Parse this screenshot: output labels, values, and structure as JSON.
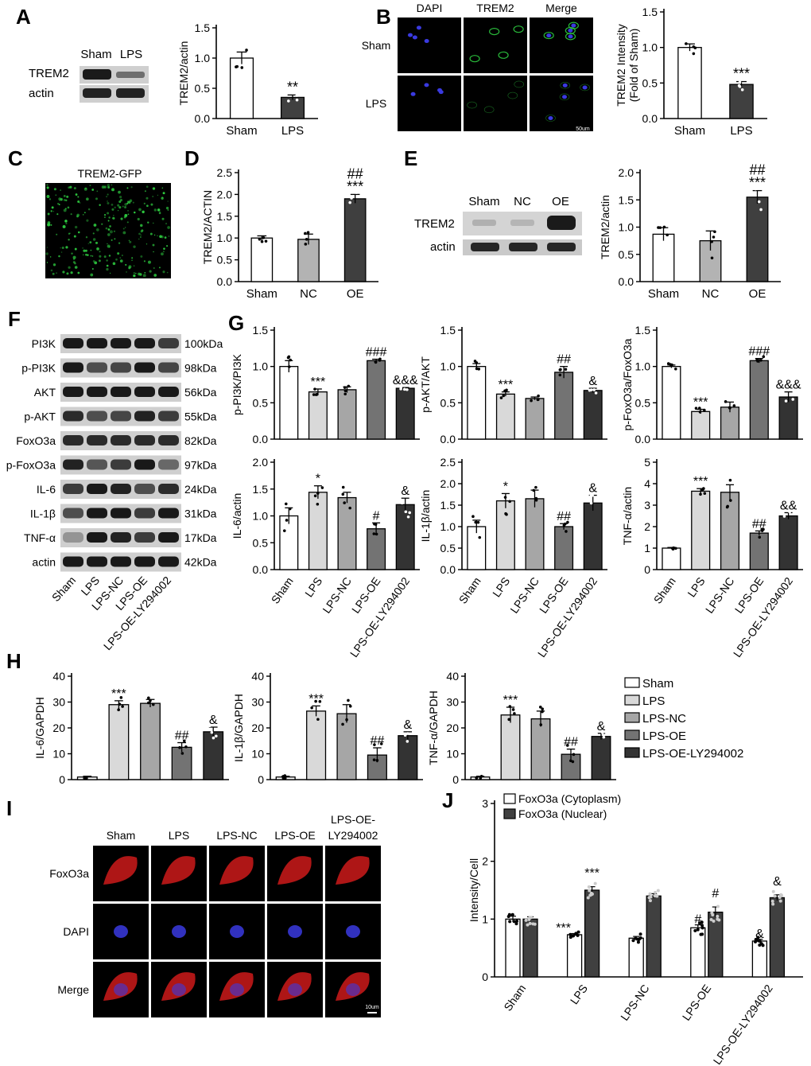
{
  "colors": {
    "sham": "#ffffff",
    "lps": "#d9d9d9",
    "lps_nc": "#a6a6a6",
    "lps_oe": "#737373",
    "lps_oe_ly": "#333333",
    "nc": "#b3b3b3",
    "oe": "#3f3f3f",
    "lps_ab": "#404040",
    "cyto": "#ffffff",
    "nuclear": "#404040",
    "red_cell": "#cc1a1a",
    "blue_nucleus": "#3a3ae0",
    "green_signal": "#2ecc40"
  },
  "panel_letters": [
    "A",
    "B",
    "C",
    "D",
    "E",
    "F",
    "G",
    "H",
    "I",
    "J"
  ],
  "blots": {
    "A": {
      "lanes": [
        "Sham",
        "LPS"
      ],
      "rows": [
        "TREM2",
        "actin"
      ]
    },
    "E": {
      "lanes": [
        "Sham",
        "NC",
        "OE"
      ],
      "rows": [
        "TREM2",
        "actin"
      ]
    },
    "F": {
      "rows": [
        "PI3K",
        "p-PI3K",
        "AKT",
        "p-AKT",
        "FoxO3a",
        "p-FoxO3a",
        "IL-6",
        "IL-1β",
        "TNF-α",
        "actin"
      ],
      "sizes": [
        "100kDa",
        "98kDa",
        "56kDa",
        "55kDa",
        "82kDa",
        "97kDa",
        "24kDa",
        "31kDa",
        "17kDa",
        "42kDa"
      ],
      "lanes": [
        "Sham",
        "LPS",
        "LPS-NC",
        "LPS-OE",
        "LPS-OE-LY294002"
      ]
    }
  },
  "images": {
    "B": {
      "cols": [
        "DAPI",
        "TREM2",
        "Merge"
      ],
      "rows": [
        "Sham",
        "LPS"
      ],
      "scale": "50um"
    },
    "C": {
      "title": "TREM2-GFP"
    },
    "I": {
      "cols": [
        "Sham",
        "LPS",
        "LPS-NC",
        "LPS-OE",
        "LPS-OE-LY294002"
      ],
      "rows": [
        "FoxO3a",
        "DAPI",
        "Merge"
      ],
      "scale": "10um"
    }
  },
  "legend_H": [
    "Sham",
    "LPS",
    "LPS-NC",
    "LPS-OE",
    "LPS-OE-LY294002"
  ],
  "chart_data": [
    {
      "id": "A",
      "type": "bar",
      "categories": [
        "Sham",
        "LPS"
      ],
      "values": [
        1.0,
        0.35
      ],
      "errors": [
        0.1,
        0.04
      ],
      "ylabel": "TREM2/actin",
      "ylim": [
        0,
        1.5
      ],
      "ticks": [
        0.0,
        0.5,
        1.0,
        1.5
      ],
      "tick_labels": [
        "0.0",
        "0.5",
        "1.0",
        "1.5"
      ],
      "marks": [
        "",
        "**"
      ]
    },
    {
      "id": "B",
      "type": "bar",
      "categories": [
        "Sham",
        "LPS"
      ],
      "values": [
        1.0,
        0.48
      ],
      "errors": [
        0.05,
        0.04
      ],
      "ylabel": "TREM2 Intensity (Fold of Sham)",
      "ylim": [
        0,
        1.5
      ],
      "ticks": [
        0.0,
        0.5,
        1.0,
        1.5
      ],
      "tick_labels": [
        "0.0",
        "0.5",
        "1.0",
        "1.5"
      ],
      "marks": [
        "",
        "***"
      ]
    },
    {
      "id": "D",
      "type": "bar",
      "categories": [
        "Sham",
        "NC",
        "OE"
      ],
      "values": [
        1.0,
        0.97,
        1.9
      ],
      "errors": [
        0.05,
        0.12,
        0.1
      ],
      "ylabel": "TREM2/ACTIN",
      "ylim": [
        0,
        2.5
      ],
      "ticks": [
        0.0,
        0.5,
        1.0,
        1.5,
        2.0,
        2.5
      ],
      "tick_labels": [
        "0.0",
        "0.5",
        "1.0",
        "1.5",
        "2.0",
        "2.5"
      ],
      "marks": [
        "",
        "",
        "##\n***"
      ]
    },
    {
      "id": "E",
      "type": "bar",
      "categories": [
        "Sham",
        "NC",
        "OE"
      ],
      "values": [
        0.87,
        0.75,
        1.55
      ],
      "errors": [
        0.12,
        0.18,
        0.12
      ],
      "ylabel": "TREM2/actin",
      "ylim": [
        0,
        2.0
      ],
      "ticks": [
        0.0,
        0.5,
        1.0,
        1.5,
        2.0
      ],
      "tick_labels": [
        "0.0",
        "0.5",
        "1.0",
        "1.5",
        "2.0"
      ],
      "marks": [
        "",
        "",
        "##\n***"
      ]
    },
    {
      "id": "G1",
      "type": "bar",
      "categories": [
        "Sham",
        "LPS",
        "LPS-NC",
        "LPS-OE",
        "LPS-OE-LY294002"
      ],
      "values": [
        1.0,
        0.65,
        0.68,
        1.08,
        0.7
      ],
      "errors": [
        0.08,
        0.04,
        0.04,
        0.02,
        0.01
      ],
      "ylabel": "p-PI3K/PI3K",
      "ylim": [
        0,
        1.5
      ],
      "ticks": [
        0.0,
        0.5,
        1.0,
        1.5
      ],
      "tick_labels": [
        "0.0",
        "0.5",
        "1.0",
        "1.5"
      ],
      "marks": [
        "",
        "***",
        "",
        "###",
        "&&&"
      ]
    },
    {
      "id": "G2",
      "type": "bar",
      "categories": [
        "Sham",
        "LPS",
        "LPS-NC",
        "LPS-OE",
        "LPS-OE-LY294002"
      ],
      "values": [
        1.0,
        0.62,
        0.56,
        0.92,
        0.67
      ],
      "errors": [
        0.04,
        0.03,
        0.02,
        0.08,
        0.03
      ],
      "ylabel": "p-AKT/AKT",
      "ylim": [
        0,
        1.5
      ],
      "ticks": [
        0.0,
        0.5,
        1.0,
        1.5
      ],
      "tick_labels": [
        "0.0",
        "0.5",
        "1.0",
        "1.5"
      ],
      "marks": [
        "",
        "***",
        "",
        "##",
        "&"
      ]
    },
    {
      "id": "G3",
      "type": "bar",
      "categories": [
        "Sham",
        "LPS",
        "LPS-NC",
        "LPS-OE",
        "LPS-OE-LY294002"
      ],
      "values": [
        1.0,
        0.38,
        0.44,
        1.08,
        0.58
      ],
      "errors": [
        0.02,
        0.03,
        0.07,
        0.03,
        0.07
      ],
      "ylabel": "p-FoxO3a/FoxO3a",
      "ylim": [
        0,
        1.5
      ],
      "ticks": [
        0.0,
        0.5,
        1.0,
        1.5
      ],
      "tick_labels": [
        "0.0",
        "0.5",
        "1.0",
        "1.5"
      ],
      "marks": [
        "",
        "***",
        "",
        "###",
        "&&&"
      ]
    },
    {
      "id": "G4",
      "type": "bar",
      "categories": [
        "Sham",
        "LPS",
        "LPS-NC",
        "LPS-OE",
        "LPS-OE-LY294002"
      ],
      "values": [
        1.0,
        1.44,
        1.34,
        0.76,
        1.21
      ],
      "errors": [
        0.15,
        0.12,
        0.1,
        0.11,
        0.12
      ],
      "ylabel": "IL-6/actin",
      "ylim": [
        0,
        2.0
      ],
      "ticks": [
        0.0,
        0.5,
        1.0,
        1.5,
        2.0
      ],
      "tick_labels": [
        "0.0",
        "0.5",
        "1.0",
        "1.5",
        "2.0"
      ],
      "marks": [
        "",
        "*",
        "",
        "#",
        "&"
      ],
      "xtick_labels": [
        "Sham",
        "LPS",
        "LPS-NC",
        "LPS-OE",
        "LPS-OE-LY294002"
      ]
    },
    {
      "id": "G5",
      "type": "bar",
      "categories": [
        "Sham",
        "LPS",
        "LPS-NC",
        "LPS-OE",
        "LPS-OE-LY294002"
      ],
      "values": [
        1.0,
        1.6,
        1.65,
        1.0,
        1.55
      ],
      "errors": [
        0.15,
        0.17,
        0.2,
        0.07,
        0.18
      ],
      "ylabel": "IL-1β/actin",
      "ylim": [
        0,
        2.5
      ],
      "ticks": [
        0.0,
        0.5,
        1.0,
        1.5,
        2.0,
        2.5
      ],
      "tick_labels": [
        "0.0",
        "0.5",
        "1.0",
        "1.5",
        "2.0",
        "2.5"
      ],
      "marks": [
        "",
        "*",
        "",
        "##",
        "&"
      ],
      "xtick_labels": [
        "Sham",
        "LPS",
        "LPS-NC",
        "LPS-OE",
        "LPS-OE-LY294002"
      ]
    },
    {
      "id": "G6",
      "type": "bar",
      "categories": [
        "Sham",
        "LPS",
        "LPS-NC",
        "LPS-OE",
        "LPS-OE-LY294002"
      ],
      "values": [
        1.0,
        3.65,
        3.6,
        1.7,
        2.5
      ],
      "errors": [
        0.03,
        0.12,
        0.35,
        0.1,
        0.15
      ],
      "ylabel": "TNF-α/actin",
      "ylim": [
        0,
        5
      ],
      "ticks": [
        0,
        1,
        2,
        3,
        4,
        5
      ],
      "tick_labels": [
        "0",
        "1",
        "2",
        "3",
        "4",
        "5"
      ],
      "marks": [
        "",
        "***",
        "",
        "##",
        "&&"
      ],
      "xtick_labels": [
        "Sham",
        "LPS",
        "LPS-NC",
        "LPS-OE",
        "LPS-OE-LY294002"
      ]
    },
    {
      "id": "H1",
      "type": "bar",
      "categories": [
        "Sham",
        "LPS",
        "LPS-NC",
        "LPS-OE",
        "LPS-OE-LY294002"
      ],
      "values": [
        1.0,
        29,
        29.5,
        12.5,
        18.5
      ],
      "errors": [
        0.3,
        1.5,
        1.5,
        1.8,
        1.8
      ],
      "ylabel": "IL-6/GAPDH",
      "ylim": [
        0,
        40
      ],
      "ticks": [
        0,
        10,
        20,
        30,
        40
      ],
      "tick_labels": [
        "0",
        "10",
        "20",
        "30",
        "40"
      ],
      "marks": [
        "",
        "***",
        "",
        "##",
        "&"
      ]
    },
    {
      "id": "H2",
      "type": "bar",
      "categories": [
        "Sham",
        "LPS",
        "LPS-NC",
        "LPS-OE",
        "LPS-OE-LY294002"
      ],
      "values": [
        1.0,
        26.5,
        25.5,
        9.5,
        17
      ],
      "errors": [
        0.3,
        2.0,
        3.5,
        2.8,
        1.5
      ],
      "ylabel": "IL-1β/GAPDH",
      "ylim": [
        0,
        40
      ],
      "ticks": [
        0,
        10,
        20,
        30,
        40
      ],
      "tick_labels": [
        "0",
        "10",
        "20",
        "30",
        "40"
      ],
      "marks": [
        "",
        "***",
        "",
        "##",
        "&"
      ]
    },
    {
      "id": "H3",
      "type": "bar",
      "categories": [
        "Sham",
        "LPS",
        "LPS-NC",
        "LPS-OE",
        "LPS-OE-LY294002"
      ],
      "values": [
        1.0,
        25,
        23.5,
        9.8,
        16.7
      ],
      "errors": [
        0.3,
        3.0,
        3.0,
        2.0,
        1.2
      ],
      "ylabel": "TNF-α/GAPDH",
      "ylim": [
        0,
        40
      ],
      "ticks": [
        0,
        10,
        20,
        30,
        40
      ],
      "tick_labels": [
        "0",
        "10",
        "20",
        "30",
        "40"
      ],
      "marks": [
        "",
        "***",
        "",
        "##",
        "&"
      ]
    },
    {
      "id": "J",
      "type": "bar",
      "categories": [
        "Sham",
        "LPS",
        "LPS-NC",
        "LPS-OE",
        "LPS-OE-LY294002"
      ],
      "series": [
        {
          "name": "FoxO3a (Cytoplasm)",
          "values": [
            1.0,
            0.73,
            0.67,
            0.85,
            0.62
          ],
          "errors": [
            0.05,
            0.02,
            0.03,
            0.05,
            0.03
          ],
          "marks": [
            "",
            "***",
            "",
            "#",
            "&"
          ]
        },
        {
          "name": "FoxO3a (Nuclear)",
          "values": [
            1.0,
            1.5,
            1.4,
            1.12,
            1.37
          ],
          "errors": [
            0.04,
            0.06,
            0.04,
            0.09,
            0.05
          ],
          "marks": [
            "",
            "***",
            "",
            "#",
            "&"
          ]
        }
      ],
      "ylabel": "Intensity/Cell",
      "ylim": [
        0,
        3
      ],
      "ticks": [
        0,
        1,
        2,
        3
      ],
      "tick_labels": [
        "0",
        "1",
        "2",
        "3"
      ],
      "xtick_labels": [
        "Sham",
        "LPS",
        "LPS-NC",
        "LPS-OE",
        "LPS-OE-LY294002"
      ]
    }
  ]
}
